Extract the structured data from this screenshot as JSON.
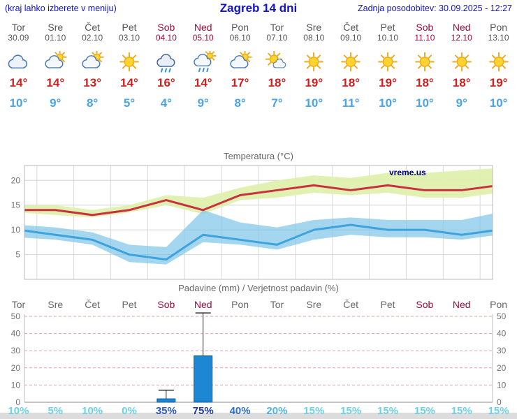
{
  "header": {
    "hint": "(kraj lahko izberete v meniju)",
    "title": "Zagreb 14 dni",
    "updated": "Zadnja posodobitev: 30.09.2025 - 12:27"
  },
  "days": [
    {
      "name": "Tor",
      "date": "30.09",
      "weekend": false,
      "icon": "cloudy",
      "tmax": "14°",
      "tmin": "10°"
    },
    {
      "name": "Sre",
      "date": "01.10",
      "weekend": false,
      "icon": "partly-cloudy",
      "tmax": "14°",
      "tmin": "9°"
    },
    {
      "name": "Čet",
      "date": "02.10",
      "weekend": false,
      "icon": "partly-cloudy",
      "tmax": "13°",
      "tmin": "8°"
    },
    {
      "name": "Pet",
      "date": "03.10",
      "weekend": false,
      "icon": "sunny",
      "tmax": "14°",
      "tmin": "5°"
    },
    {
      "name": "Sob",
      "date": "04.10",
      "weekend": true,
      "icon": "rain",
      "tmax": "16°",
      "tmin": "4°"
    },
    {
      "name": "Ned",
      "date": "05.10",
      "weekend": true,
      "icon": "showers",
      "tmax": "14°",
      "tmin": "9°"
    },
    {
      "name": "Pon",
      "date": "06.10",
      "weekend": false,
      "icon": "partly-cloudy",
      "tmax": "17°",
      "tmin": "8°"
    },
    {
      "name": "Tor",
      "date": "07.10",
      "weekend": false,
      "icon": "mostly-sunny",
      "tmax": "18°",
      "tmin": "7°"
    },
    {
      "name": "Sre",
      "date": "08.10",
      "weekend": false,
      "icon": "sunny",
      "tmax": "19°",
      "tmin": "10°"
    },
    {
      "name": "Čet",
      "date": "09.10",
      "weekend": false,
      "icon": "sunny",
      "tmax": "18°",
      "tmin": "11°"
    },
    {
      "name": "Pet",
      "date": "10.10",
      "weekend": false,
      "icon": "sunny",
      "tmax": "19°",
      "tmin": "10°"
    },
    {
      "name": "Sob",
      "date": "11.10",
      "weekend": true,
      "icon": "sunny",
      "tmax": "18°",
      "tmin": "10°"
    },
    {
      "name": "Ned",
      "date": "12.10",
      "weekend": true,
      "icon": "sunny",
      "tmax": "18°",
      "tmin": "9°"
    },
    {
      "name": "Pon",
      "date": "13.10",
      "weekend": false,
      "icon": "sunny",
      "tmax": "19°",
      "tmin": "10°"
    }
  ],
  "chart_data": [
    {
      "type": "line",
      "title": "Temperatura (°C)",
      "watermark": "vreme.us",
      "categories": [
        "Tor 30.09",
        "Sre 01.10",
        "Čet 02.10",
        "Pet 03.10",
        "Sob 04.10",
        "Ned 05.10",
        "Pon 06.10",
        "Tor 07.10",
        "Sre 08.10",
        "Čet 09.10",
        "Pet 10.10",
        "Sob 11.10",
        "Ned 12.10",
        "Pon 13.10"
      ],
      "ylim": [
        0,
        23
      ],
      "yticks": [
        5,
        10,
        15,
        20
      ],
      "series": [
        {
          "name": "Max temperatura",
          "color": "#c93040",
          "values": [
            14,
            14,
            13,
            14,
            16,
            14,
            17,
            18,
            19,
            18,
            19,
            18,
            18,
            19
          ]
        },
        {
          "name": "Min temperatura",
          "color": "#3ea2dc",
          "values": [
            10,
            9,
            8,
            5,
            4,
            9,
            8,
            7,
            10,
            11,
            10,
            10,
            9,
            10
          ]
        }
      ],
      "bands": [
        {
          "name": "max-range",
          "color": "#dff0ae",
          "opacity": 0.95,
          "upper": [
            15,
            15,
            14,
            15,
            17,
            16.5,
            18.5,
            20,
            21,
            20.5,
            21.5,
            21.5,
            22,
            22.5
          ],
          "lower": [
            13.5,
            13,
            12.5,
            13.5,
            15,
            13.2,
            16,
            16.5,
            17.5,
            17,
            17.5,
            16.5,
            16.5,
            17.5
          ]
        },
        {
          "name": "min-range",
          "color": "#7ec6e8",
          "opacity": 0.7,
          "upper": [
            11,
            10.5,
            9.5,
            7,
            6.5,
            14,
            11.5,
            10.5,
            12,
            12.5,
            12,
            12,
            12,
            13.5
          ],
          "lower": [
            8.5,
            8,
            7,
            3.5,
            3,
            7.5,
            7,
            6,
            8,
            9,
            8.5,
            8.5,
            8,
            9
          ]
        }
      ],
      "grid": true,
      "legend": "none"
    },
    {
      "type": "bar",
      "title": "Padavine (mm) / Verjetnost padavin (%)",
      "categories": [
        "Tor",
        "Sre",
        "Čet",
        "Pet",
        "Sob",
        "Ned",
        "Pon",
        "Tor",
        "Sre",
        "Čet",
        "Pet",
        "Sob",
        "Ned",
        "Pon"
      ],
      "weekend_indices": [
        4,
        5,
        11,
        12
      ],
      "ylim": [
        0,
        53
      ],
      "yticks": [
        0,
        10,
        20,
        30,
        40,
        50
      ],
      "bar_color": "#1d87d4",
      "bar_border": "#0d5a92",
      "values": [
        0,
        0,
        0,
        0,
        2,
        27,
        0,
        0,
        0,
        0,
        0,
        0,
        0,
        0
      ],
      "whisker_max": [
        0,
        0,
        0,
        0,
        7,
        52,
        0,
        0,
        0,
        0,
        0,
        0,
        0,
        0
      ],
      "probabilities": [
        {
          "label": "10%",
          "color": "#6ad2e8"
        },
        {
          "label": "5%",
          "color": "#6ad2e8"
        },
        {
          "label": "10%",
          "color": "#6ad2e8"
        },
        {
          "label": "0%",
          "color": "#6ad2e8"
        },
        {
          "label": "35%",
          "color": "#2d59c0"
        },
        {
          "label": "75%",
          "color": "#1b3aa6"
        },
        {
          "label": "40%",
          "color": "#2d6fc9"
        },
        {
          "label": "20%",
          "color": "#4fb3e2"
        },
        {
          "label": "15%",
          "color": "#6ad2e8"
        },
        {
          "label": "15%",
          "color": "#6ad2e8"
        },
        {
          "label": "15%",
          "color": "#6ad2e8"
        },
        {
          "label": "15%",
          "color": "#6ad2e8"
        },
        {
          "label": "15%",
          "color": "#6ad2e8"
        },
        {
          "label": "15%",
          "color": "#6ad2e8"
        }
      ],
      "grid": "dashed-horizontal",
      "legend": "none"
    }
  ]
}
